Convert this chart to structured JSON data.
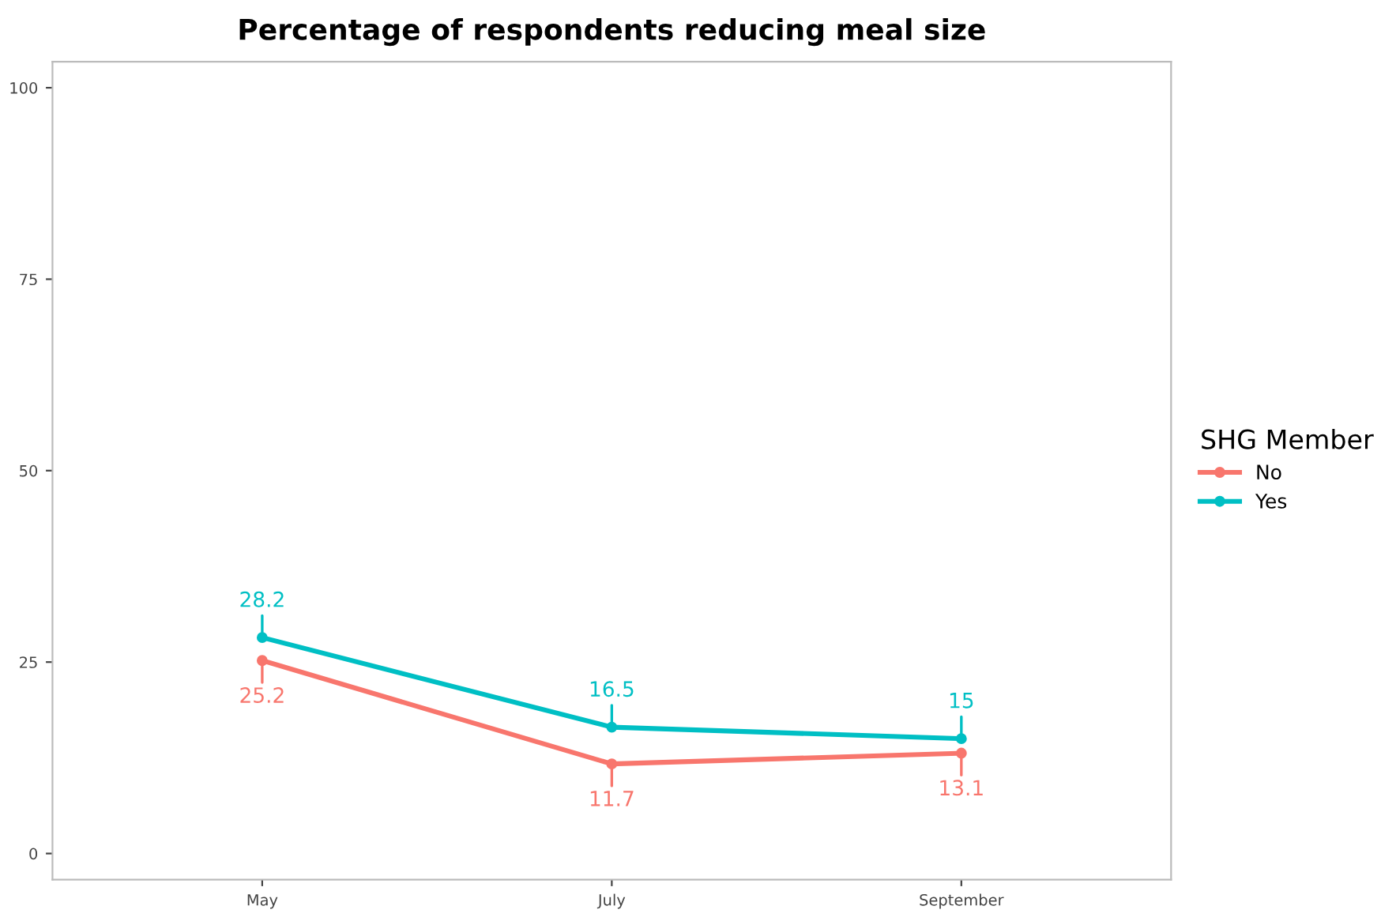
{
  "chart_data": {
    "type": "line",
    "title": "Percentage of respondents reducing meal size",
    "categories": [
      "May",
      "July",
      "September"
    ],
    "series": [
      {
        "name": "No",
        "color": "#f8766d",
        "values": [
          25.2,
          11.7,
          13.1
        ]
      },
      {
        "name": "Yes",
        "color": "#00bfc4",
        "values": [
          28.2,
          16.5,
          15
        ]
      }
    ],
    "ylim": [
      -3.4,
      103.4
    ],
    "yticks": [
      0,
      25,
      50,
      75,
      100
    ],
    "data_labels": true,
    "legend": "right",
    "legend_title": "SHG Member",
    "marker": "circle",
    "line_style": "solid",
    "grid": false
  }
}
